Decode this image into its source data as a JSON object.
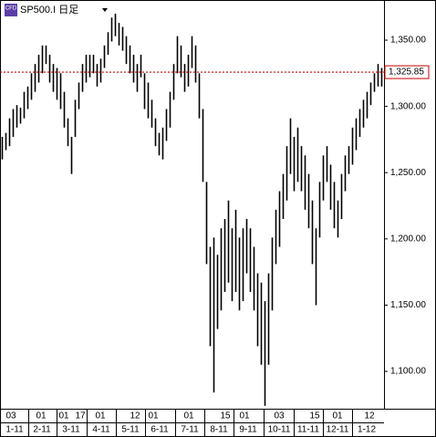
{
  "chart_data": {
    "type": "ohlc",
    "title": "SP500.I 日足",
    "badge": "CFD",
    "high": [
      1277,
      1280,
      1291,
      1298,
      1301,
      1299,
      1311,
      1315,
      1325,
      1332,
      1339,
      1346,
      1346,
      1339,
      1332,
      1329,
      1325,
      1311,
      1291,
      1277,
      1305,
      1318,
      1332,
      1339,
      1339,
      1339,
      1332,
      1336,
      1346,
      1356,
      1367,
      1370,
      1363,
      1360,
      1353,
      1346,
      1339,
      1332,
      1339,
      1325,
      1318,
      1305,
      1291,
      1280,
      1284,
      1298,
      1311,
      1332,
      1353,
      1346,
      1332,
      1339,
      1353,
      1346,
      1325,
      1298,
      1243,
      1194,
      1201,
      1188,
      1208,
      1215,
      1229,
      1208,
      1222,
      1201,
      1208,
      1215,
      1208,
      1194,
      1174,
      1167,
      1153,
      1174,
      1201,
      1222,
      1236,
      1249,
      1270,
      1291,
      1277,
      1284,
      1270,
      1263,
      1249,
      1229,
      1208,
      1243,
      1263,
      1270,
      1256,
      1243,
      1229,
      1249,
      1263,
      1270,
      1284,
      1291,
      1298,
      1305,
      1311,
      1318,
      1325,
      1332,
      1329
    ],
    "low": [
      1260,
      1267,
      1270,
      1277,
      1284,
      1287,
      1291,
      1298,
      1305,
      1311,
      1318,
      1325,
      1332,
      1318,
      1311,
      1305,
      1298,
      1284,
      1270,
      1249,
      1277,
      1298,
      1311,
      1318,
      1322,
      1325,
      1315,
      1318,
      1329,
      1339,
      1349,
      1353,
      1346,
      1342,
      1332,
      1325,
      1318,
      1311,
      1322,
      1298,
      1291,
      1284,
      1270,
      1263,
      1260,
      1274,
      1284,
      1305,
      1325,
      1322,
      1311,
      1315,
      1329,
      1318,
      1291,
      1243,
      1181,
      1119,
      1084,
      1132,
      1146,
      1160,
      1167,
      1153,
      1160,
      1146,
      1153,
      1174,
      1160,
      1146,
      1119,
      1105,
      1074,
      1105,
      1146,
      1181,
      1194,
      1215,
      1229,
      1249,
      1236,
      1243,
      1236,
      1222,
      1208,
      1181,
      1150,
      1201,
      1229,
      1243,
      1222,
      1208,
      1201,
      1215,
      1236,
      1249,
      1256,
      1267,
      1277,
      1284,
      1291,
      1301,
      1311,
      1315,
      1315
    ],
    "color": "#000000",
    "xlim": [
      -0.5,
      104.5
    ],
    "ylim": [
      1072.5,
      1380.3
    ],
    "yticks": [
      {
        "value": 1350,
        "label": "1,350.00"
      },
      {
        "value": 1300,
        "label": "1,300.00"
      },
      {
        "value": 1250,
        "label": "1,250.00"
      },
      {
        "value": 1200,
        "label": "1,200.00"
      },
      {
        "value": 1150,
        "label": "1,150.00"
      },
      {
        "value": 1100,
        "label": "1,100.00"
      }
    ],
    "xticks": [
      {
        "value": 2.5,
        "label": "03"
      },
      {
        "value": 10.75,
        "label": "01"
      },
      {
        "value": 17,
        "label": "01"
      },
      {
        "value": 21.5,
        "label": "17"
      },
      {
        "value": 27,
        "label": "01"
      },
      {
        "value": 36.5,
        "label": "12"
      },
      {
        "value": 41.5,
        "label": "01"
      },
      {
        "value": 51.25,
        "label": "01"
      },
      {
        "value": 61.25,
        "label": "15"
      },
      {
        "value": 66.5,
        "label": "01"
      },
      {
        "value": 76,
        "label": "03"
      },
      {
        "value": 85.75,
        "label": "15"
      },
      {
        "value": 92,
        "label": "01"
      },
      {
        "value": 100.75,
        "label": "12"
      }
    ],
    "month_ticks": [
      {
        "value": 3.5,
        "label": "1-11"
      },
      {
        "value": 11,
        "label": "2-11"
      },
      {
        "value": 19,
        "label": "3-11"
      },
      {
        "value": 27.25,
        "label": "4-11"
      },
      {
        "value": 35.25,
        "label": "5-11"
      },
      {
        "value": 43.25,
        "label": "6-11"
      },
      {
        "value": 51.5,
        "label": "7-11"
      },
      {
        "value": 59.5,
        "label": "8-11"
      },
      {
        "value": 67.5,
        "label": "9-11"
      },
      {
        "value": 76,
        "label": "10-11"
      },
      {
        "value": 84,
        "label": "11-11"
      },
      {
        "value": 92,
        "label": "12-11"
      },
      {
        "value": 100,
        "label": "1-12"
      }
    ],
    "last_price": {
      "value": 1325.85,
      "label": "1,325.85",
      "color": "#cc0000"
    }
  }
}
